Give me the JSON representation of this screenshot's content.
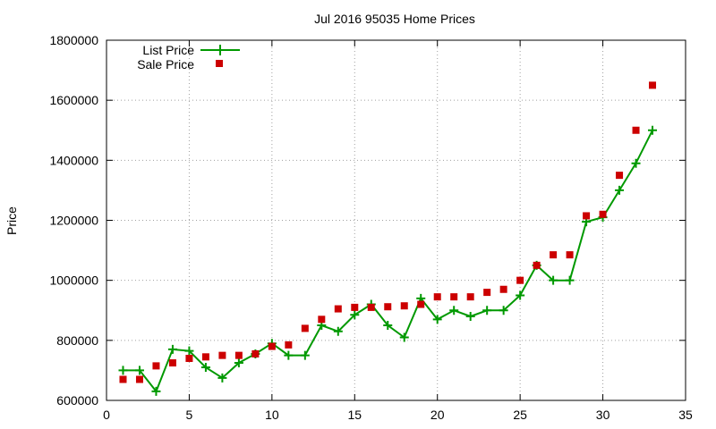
{
  "chart_data": {
    "type": "line",
    "title": "Jul 2016 95035 Home Prices",
    "xlabel": "",
    "ylabel": "Price",
    "xlim": [
      0,
      35
    ],
    "ylim": [
      600000,
      1800000
    ],
    "x_ticks": [
      0,
      5,
      10,
      15,
      20,
      25,
      30,
      35
    ],
    "y_ticks": [
      600000,
      800000,
      1000000,
      1200000,
      1400000,
      1600000,
      1800000
    ],
    "x_tick_labels": [
      "0",
      "5",
      "10",
      "15",
      "20",
      "25",
      "30",
      "35"
    ],
    "y_tick_labels": [
      "600000",
      "800000",
      "1000000",
      "1200000",
      "1400000",
      "1600000",
      "1800000"
    ],
    "grid": true,
    "legend_position": "top-left",
    "x": [
      1,
      2,
      3,
      4,
      5,
      6,
      7,
      8,
      9,
      10,
      11,
      12,
      13,
      14,
      15,
      16,
      17,
      18,
      19,
      20,
      21,
      22,
      23,
      24,
      25,
      26,
      27,
      28,
      29,
      30,
      31,
      32,
      33
    ],
    "series": [
      {
        "name": "List Price",
        "style": "line-plus",
        "color": "#009900",
        "values": [
          700000,
          700000,
          630000,
          770000,
          765000,
          710000,
          675000,
          725000,
          755000,
          790000,
          750000,
          750000,
          850000,
          830000,
          885000,
          920000,
          850000,
          810000,
          940000,
          870000,
          900000,
          880000,
          900000,
          900000,
          950000,
          1050000,
          1000000,
          1000000,
          1195000,
          1210000,
          1300000,
          1390000,
          1500000
        ]
      },
      {
        "name": "Sale Price",
        "style": "square-markers",
        "color": "#cc0000",
        "values": [
          670000,
          670000,
          715000,
          725000,
          740000,
          745000,
          750000,
          750000,
          755000,
          780000,
          785000,
          840000,
          870000,
          905000,
          910000,
          910000,
          912000,
          915000,
          920000,
          945000,
          945000,
          945000,
          960000,
          970000,
          1000000,
          1050000,
          1085000,
          1085000,
          1215000,
          1220000,
          1350000,
          1500000,
          1650000
        ]
      }
    ]
  }
}
